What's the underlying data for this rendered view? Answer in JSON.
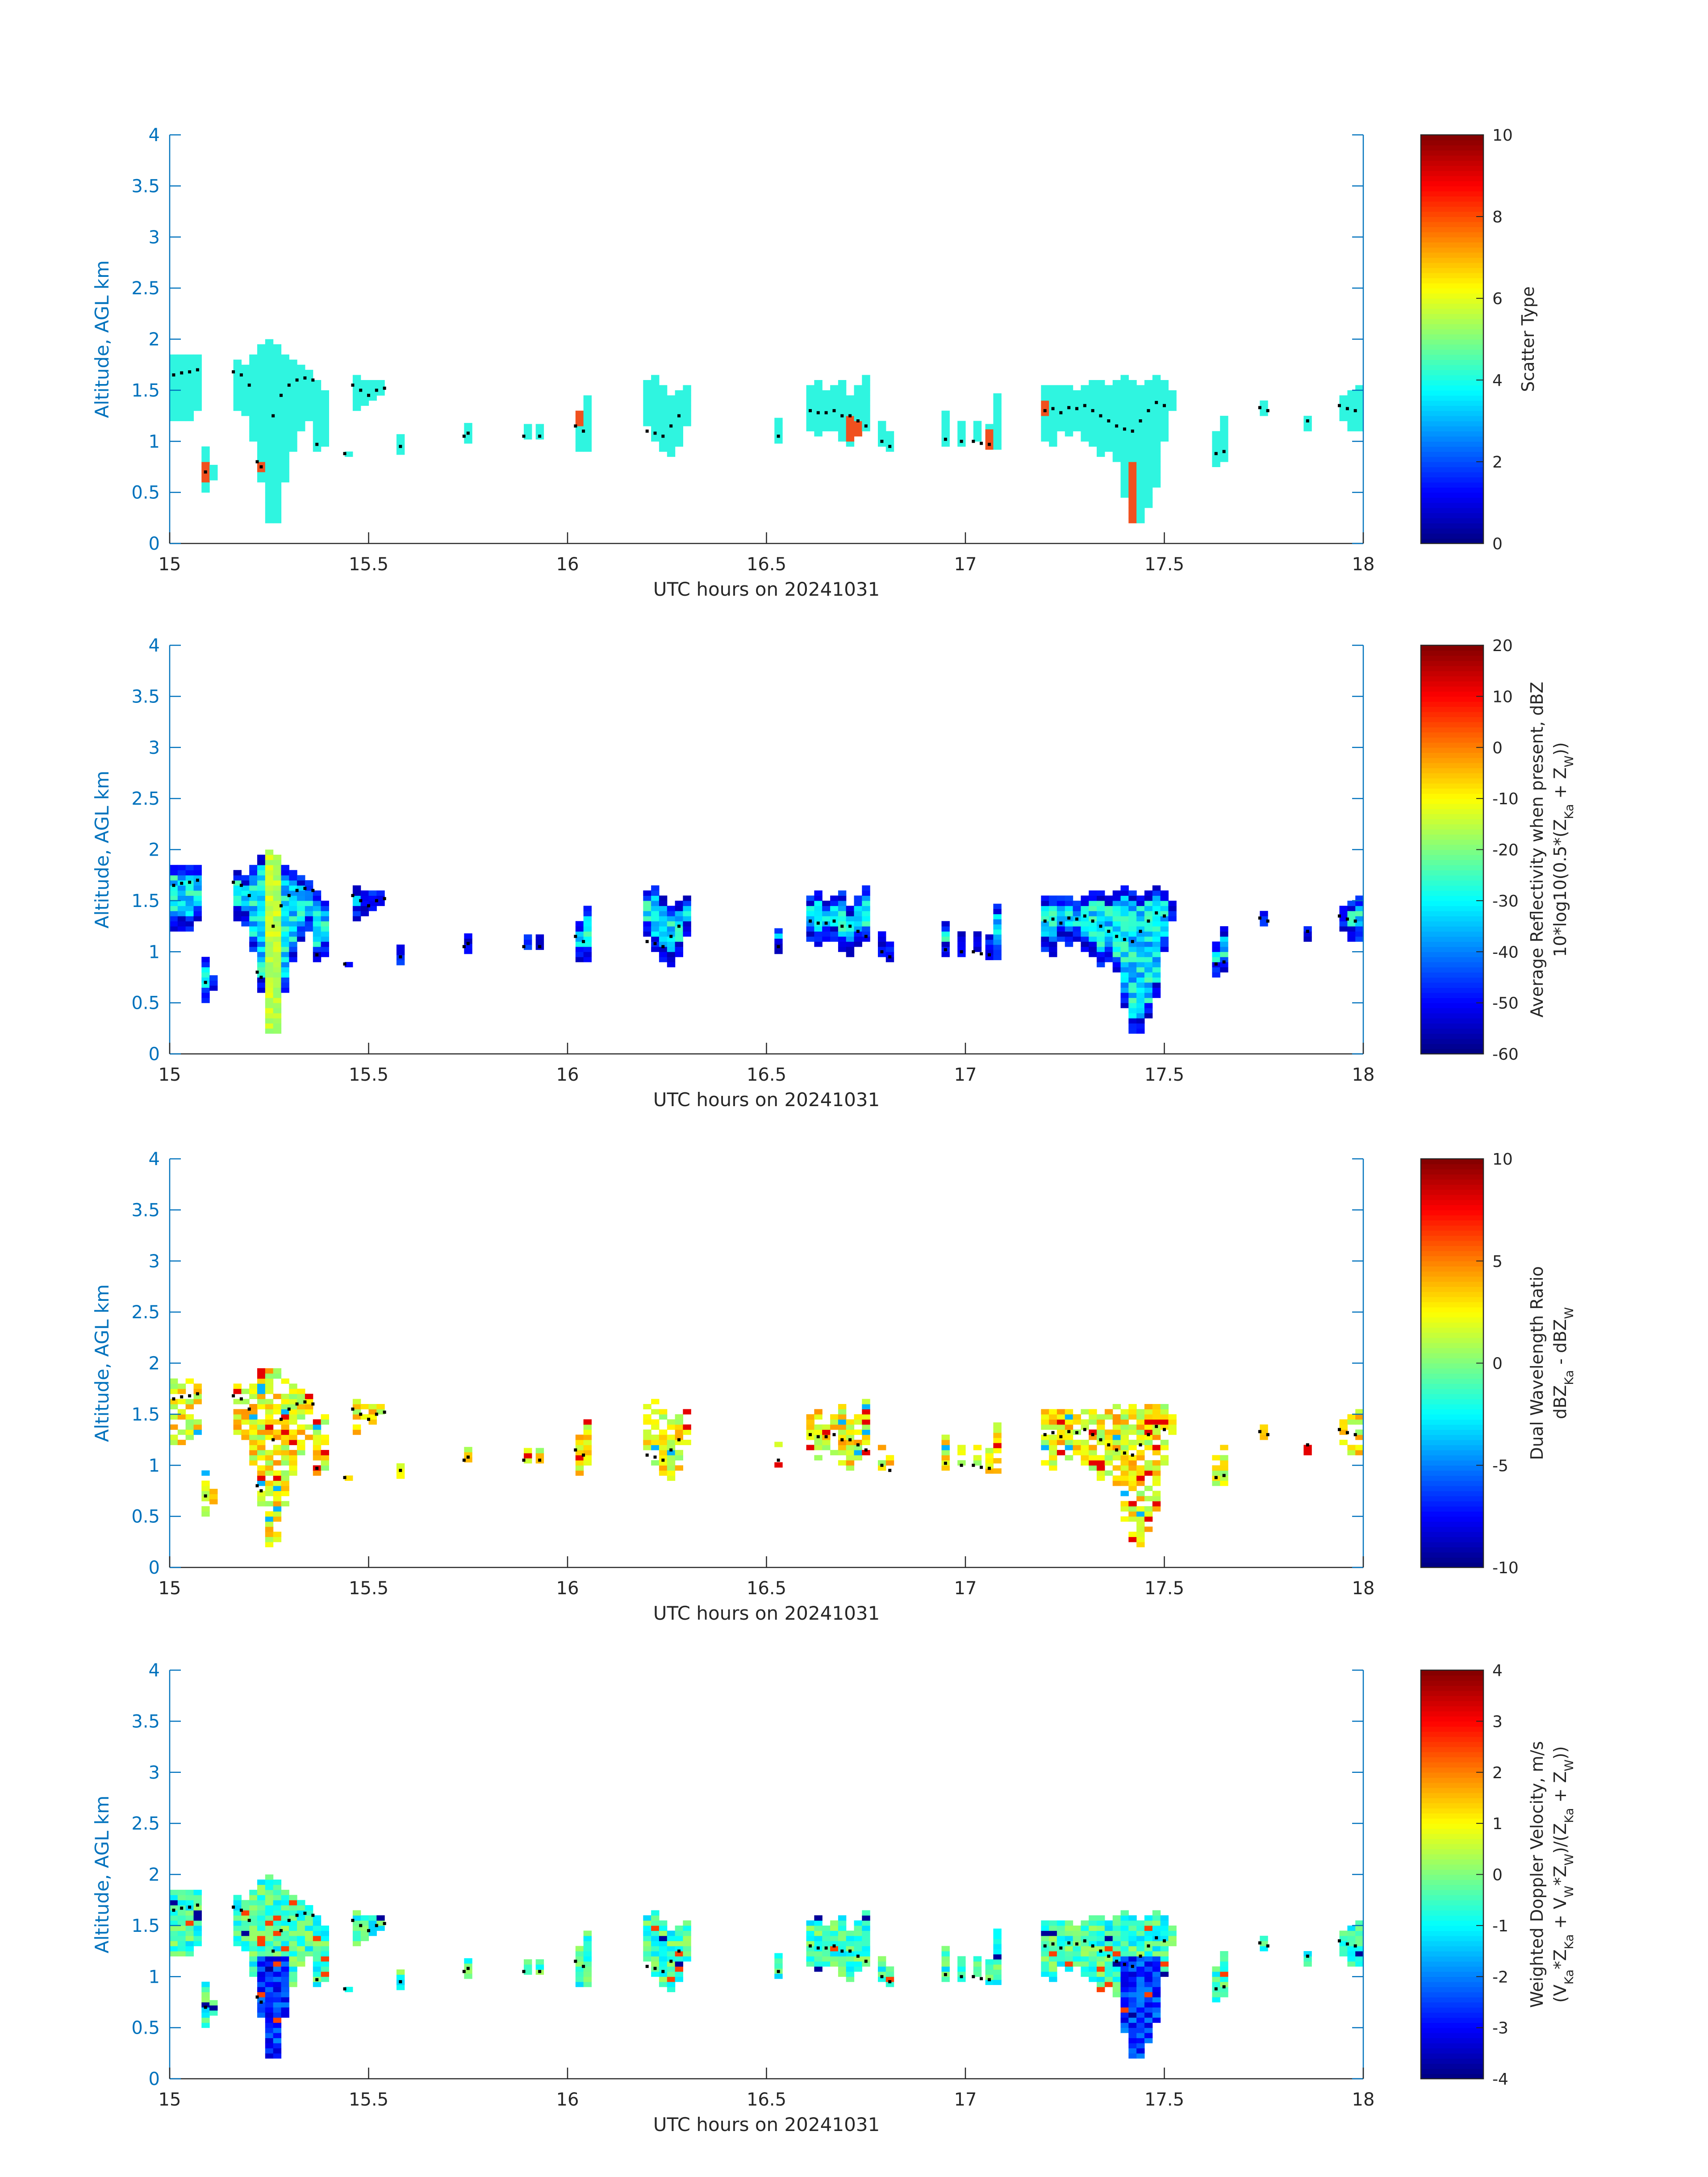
{
  "colors": {
    "axis_blue": "#0072BD",
    "text_dark": "#262626",
    "cell_teal": "#2ff5e0",
    "cell_orange": "#f0501e",
    "marker_black": "#000000"
  },
  "shared_x": {
    "label": "UTC hours on 20241031",
    "ticks": [
      "15",
      "15.5",
      "16",
      "16.5",
      "17",
      "17.5",
      "18"
    ]
  },
  "shared_y": {
    "label": "Altitude, AGL km",
    "ticks": [
      "0",
      "0.5",
      "1",
      "1.5",
      "2",
      "2.5",
      "3",
      "3.5",
      "4"
    ]
  },
  "chart_data": [
    {
      "type": "heatmap",
      "xlabel": "UTC hours on 20241031",
      "ylabel": "Altitude, AGL km",
      "xlim": [
        15,
        18
      ],
      "ylim": [
        0,
        4
      ],
      "colormap": "jet",
      "colorbar": {
        "label": "Scatter Type",
        "range": [
          0,
          10
        ],
        "ticks": [
          "0",
          "2",
          "4",
          "6",
          "8",
          "10"
        ]
      },
      "field": "scatter_type",
      "dominant_value": 3.7,
      "secondary_value": 8.3,
      "secondary_cells": [
        [
          15.08,
          0.6,
          0.77
        ],
        [
          15.16,
          0.75,
          0.85
        ],
        [
          15.21,
          0.68,
          0.78
        ],
        [
          15.39,
          1.5,
          1.57
        ],
        [
          16.01,
          1.15,
          1.25
        ],
        [
          16.71,
          0.97,
          1.2
        ],
        [
          17.04,
          0.92,
          1.08
        ],
        [
          17.14,
          0.92,
          1.08
        ],
        [
          17.18,
          1.25,
          1.37
        ],
        [
          17.41,
          0.18,
          0.75
        ]
      ]
    },
    {
      "type": "heatmap",
      "xlabel": "UTC hours on 20241031",
      "ylabel": "Altitude, AGL km",
      "xlim": [
        15,
        18
      ],
      "ylim": [
        0,
        4
      ],
      "colormap": "jet",
      "colorbar": {
        "label_line1": "Average Reflectivity when present, dBZ",
        "label_line2": "10*log10(0.5*(Z",
        "sub_ka": "Ka",
        "label_mid": " + Z",
        "sub_w": "W",
        "label_end": "))",
        "range": [
          -60,
          20
        ],
        "ticks": [
          "-60",
          "-50",
          "-40",
          "-30",
          "-20",
          "-10",
          "0",
          "10",
          "20"
        ]
      },
      "field": "reflectivity_dbz",
      "core_value": -15,
      "edge_value": -50,
      "interior_value": -32
    },
    {
      "type": "heatmap",
      "xlabel": "UTC hours on 20241031",
      "ylabel": "Altitude, AGL km",
      "xlim": [
        15,
        18
      ],
      "ylim": [
        0,
        4
      ],
      "colormap": "jet",
      "colorbar": {
        "label_line1": "Dual Wavelength Ratio",
        "label_line2": "dBZ",
        "sub_ka": "Ka",
        "label_mid": " - dBZ",
        "sub_w": "W",
        "range": [
          -10,
          10
        ],
        "ticks": [
          "-10",
          "-5",
          "0",
          "5",
          "10"
        ]
      },
      "field": "dual_wavelength_ratio_db",
      "typical_value": 2.5,
      "spread": [
        -1,
        8
      ]
    },
    {
      "type": "heatmap",
      "xlabel": "UTC hours on 20241031",
      "ylabel": "Altitude, AGL km",
      "xlim": [
        15,
        18
      ],
      "ylim": [
        0,
        4
      ],
      "colormap": "jet",
      "colorbar": {
        "label_line1": "Weighted Doppler Velocity, m/s",
        "label_line2": "(V",
        "sub_ka": "Ka",
        "label_a": "*Z",
        "label_b": " + V",
        "sub_w": "W",
        "label_c": "*Z",
        "label_d": ")/(Z",
        "label_e": " + Z",
        "label_end": "))",
        "range": [
          -4,
          4
        ],
        "ticks": [
          "-4",
          "-3",
          "-2",
          "-1",
          "0",
          "1",
          "2",
          "3",
          "4"
        ]
      },
      "field": "doppler_velocity_ms",
      "typical_value": -0.5,
      "core_value": -2.6
    }
  ],
  "echo_columns": [
    {
      "x": 15.0,
      "bot": 1.2,
      "top": 1.85
    },
    {
      "x": 15.02,
      "bot": 1.2,
      "top": 1.85
    },
    {
      "x": 15.04,
      "bot": 1.2,
      "top": 1.85
    },
    {
      "x": 15.06,
      "bot": 1.3,
      "top": 1.85
    },
    {
      "x": 15.08,
      "bot": 0.5,
      "top": 0.95
    },
    {
      "x": 15.1,
      "bot": 0.62,
      "top": 0.75
    },
    {
      "x": 15.16,
      "bot": 1.3,
      "top": 1.8
    },
    {
      "x": 15.18,
      "bot": 1.25,
      "top": 1.75
    },
    {
      "x": 15.2,
      "bot": 1.0,
      "top": 1.85
    },
    {
      "x": 15.22,
      "bot": 0.6,
      "top": 1.95
    },
    {
      "x": 15.24,
      "bot": 0.2,
      "top": 2.0
    },
    {
      "x": 15.26,
      "bot": 0.2,
      "top": 1.95
    },
    {
      "x": 15.28,
      "bot": 0.6,
      "top": 1.85
    },
    {
      "x": 15.3,
      "bot": 0.9,
      "top": 1.8
    },
    {
      "x": 15.32,
      "bot": 1.1,
      "top": 1.75
    },
    {
      "x": 15.34,
      "bot": 1.2,
      "top": 1.7
    },
    {
      "x": 15.36,
      "bot": 0.9,
      "top": 1.6
    },
    {
      "x": 15.38,
      "bot": 0.95,
      "top": 1.5
    },
    {
      "x": 15.44,
      "bot": 0.85,
      "top": 0.9
    },
    {
      "x": 15.46,
      "bot": 1.3,
      "top": 1.65
    },
    {
      "x": 15.48,
      "bot": 1.35,
      "top": 1.6
    },
    {
      "x": 15.5,
      "bot": 1.4,
      "top": 1.6
    },
    {
      "x": 15.52,
      "bot": 1.45,
      "top": 1.6
    },
    {
      "x": 15.57,
      "bot": 0.87,
      "top": 1.07
    },
    {
      "x": 15.74,
      "bot": 0.98,
      "top": 1.18
    },
    {
      "x": 15.89,
      "bot": 1.02,
      "top": 1.17
    },
    {
      "x": 15.92,
      "bot": 1.02,
      "top": 1.17
    },
    {
      "x": 16.02,
      "bot": 0.9,
      "top": 1.3
    },
    {
      "x": 16.04,
      "bot": 0.9,
      "top": 1.45
    },
    {
      "x": 16.19,
      "bot": 1.15,
      "top": 1.6
    },
    {
      "x": 16.21,
      "bot": 1.0,
      "top": 1.65
    },
    {
      "x": 16.23,
      "bot": 0.9,
      "top": 1.55
    },
    {
      "x": 16.25,
      "bot": 0.85,
      "top": 1.45
    },
    {
      "x": 16.27,
      "bot": 0.95,
      "top": 1.5
    },
    {
      "x": 16.29,
      "bot": 1.15,
      "top": 1.55
    },
    {
      "x": 16.52,
      "bot": 0.98,
      "top": 1.25
    },
    {
      "x": 16.6,
      "bot": 1.1,
      "top": 1.55
    },
    {
      "x": 16.62,
      "bot": 1.05,
      "top": 1.6
    },
    {
      "x": 16.64,
      "bot": 1.1,
      "top": 1.5
    },
    {
      "x": 16.66,
      "bot": 1.1,
      "top": 1.55
    },
    {
      "x": 16.68,
      "bot": 1.0,
      "top": 1.6
    },
    {
      "x": 16.7,
      "bot": 0.95,
      "top": 1.45
    },
    {
      "x": 16.72,
      "bot": 1.05,
      "top": 1.55
    },
    {
      "x": 16.74,
      "bot": 1.1,
      "top": 1.65
    },
    {
      "x": 16.78,
      "bot": 0.95,
      "top": 1.2
    },
    {
      "x": 16.8,
      "bot": 0.9,
      "top": 1.1
    },
    {
      "x": 16.94,
      "bot": 0.95,
      "top": 1.3
    },
    {
      "x": 16.98,
      "bot": 0.95,
      "top": 1.2
    },
    {
      "x": 17.02,
      "bot": 1.0,
      "top": 1.2
    },
    {
      "x": 17.05,
      "bot": 0.92,
      "top": 1.15
    },
    {
      "x": 17.07,
      "bot": 0.92,
      "top": 1.45
    },
    {
      "x": 17.19,
      "bot": 1.0,
      "top": 1.55
    },
    {
      "x": 17.21,
      "bot": 0.95,
      "top": 1.55
    },
    {
      "x": 17.23,
      "bot": 1.1,
      "top": 1.55
    },
    {
      "x": 17.25,
      "bot": 1.05,
      "top": 1.55
    },
    {
      "x": 17.27,
      "bot": 1.1,
      "top": 1.5
    },
    {
      "x": 17.29,
      "bot": 1.0,
      "top": 1.55
    },
    {
      "x": 17.31,
      "bot": 0.95,
      "top": 1.6
    },
    {
      "x": 17.33,
      "bot": 0.85,
      "top": 1.6
    },
    {
      "x": 17.35,
      "bot": 0.9,
      "top": 1.55
    },
    {
      "x": 17.37,
      "bot": 0.8,
      "top": 1.6
    },
    {
      "x": 17.39,
      "bot": 0.45,
      "top": 1.65
    },
    {
      "x": 17.41,
      "bot": 0.2,
      "top": 1.6
    },
    {
      "x": 17.43,
      "bot": 0.2,
      "top": 1.55
    },
    {
      "x": 17.45,
      "bot": 0.35,
      "top": 1.6
    },
    {
      "x": 17.47,
      "bot": 0.55,
      "top": 1.65
    },
    {
      "x": 17.49,
      "bot": 1.0,
      "top": 1.6
    },
    {
      "x": 17.51,
      "bot": 1.3,
      "top": 1.5
    },
    {
      "x": 17.62,
      "bot": 0.75,
      "top": 1.1
    },
    {
      "x": 17.64,
      "bot": 0.8,
      "top": 1.25
    },
    {
      "x": 17.74,
      "bot": 1.25,
      "top": 1.38
    },
    {
      "x": 17.85,
      "bot": 1.1,
      "top": 1.25
    },
    {
      "x": 17.94,
      "bot": 1.2,
      "top": 1.45
    },
    {
      "x": 17.96,
      "bot": 1.1,
      "top": 1.5
    },
    {
      "x": 17.98,
      "bot": 1.1,
      "top": 1.55
    }
  ],
  "cloud_base_markers": [
    [
      15.01,
      1.65
    ],
    [
      15.03,
      1.67
    ],
    [
      15.05,
      1.68
    ],
    [
      15.07,
      1.7
    ],
    [
      15.09,
      0.7
    ],
    [
      15.16,
      1.68
    ],
    [
      15.18,
      1.65
    ],
    [
      15.2,
      1.55
    ],
    [
      15.22,
      0.8
    ],
    [
      15.23,
      0.75
    ],
    [
      15.26,
      1.25
    ],
    [
      15.28,
      1.45
    ],
    [
      15.3,
      1.55
    ],
    [
      15.32,
      1.6
    ],
    [
      15.34,
      1.62
    ],
    [
      15.36,
      1.6
    ],
    [
      15.37,
      0.97
    ],
    [
      15.44,
      0.88
    ],
    [
      15.46,
      1.55
    ],
    [
      15.48,
      1.5
    ],
    [
      15.5,
      1.45
    ],
    [
      15.52,
      1.5
    ],
    [
      15.54,
      1.52
    ],
    [
      15.58,
      0.95
    ],
    [
      15.74,
      1.05
    ],
    [
      15.75,
      1.08
    ],
    [
      15.89,
      1.05
    ],
    [
      15.93,
      1.05
    ],
    [
      16.02,
      1.15
    ],
    [
      16.04,
      1.1
    ],
    [
      16.2,
      1.1
    ],
    [
      16.22,
      1.08
    ],
    [
      16.24,
      1.05
    ],
    [
      16.26,
      1.15
    ],
    [
      16.28,
      1.25
    ],
    [
      16.53,
      1.05
    ],
    [
      16.61,
      1.3
    ],
    [
      16.63,
      1.28
    ],
    [
      16.65,
      1.28
    ],
    [
      16.67,
      1.3
    ],
    [
      16.69,
      1.25
    ],
    [
      16.71,
      1.25
    ],
    [
      16.73,
      1.2
    ],
    [
      16.75,
      1.15
    ],
    [
      16.79,
      1.0
    ],
    [
      16.81,
      0.95
    ],
    [
      16.95,
      1.02
    ],
    [
      16.99,
      1.0
    ],
    [
      17.02,
      1.0
    ],
    [
      17.04,
      0.98
    ],
    [
      17.06,
      0.97
    ],
    [
      17.2,
      1.3
    ],
    [
      17.22,
      1.32
    ],
    [
      17.24,
      1.28
    ],
    [
      17.26,
      1.33
    ],
    [
      17.28,
      1.32
    ],
    [
      17.3,
      1.35
    ],
    [
      17.32,
      1.3
    ],
    [
      17.34,
      1.25
    ],
    [
      17.36,
      1.2
    ],
    [
      17.38,
      1.15
    ],
    [
      17.4,
      1.12
    ],
    [
      17.42,
      1.1
    ],
    [
      17.44,
      1.2
    ],
    [
      17.46,
      1.3
    ],
    [
      17.48,
      1.38
    ],
    [
      17.5,
      1.35
    ],
    [
      17.63,
      0.88
    ],
    [
      17.65,
      0.9
    ],
    [
      17.74,
      1.33
    ],
    [
      17.76,
      1.3
    ],
    [
      17.86,
      1.2
    ],
    [
      17.94,
      1.35
    ],
    [
      17.96,
      1.32
    ],
    [
      17.98,
      1.3
    ]
  ]
}
